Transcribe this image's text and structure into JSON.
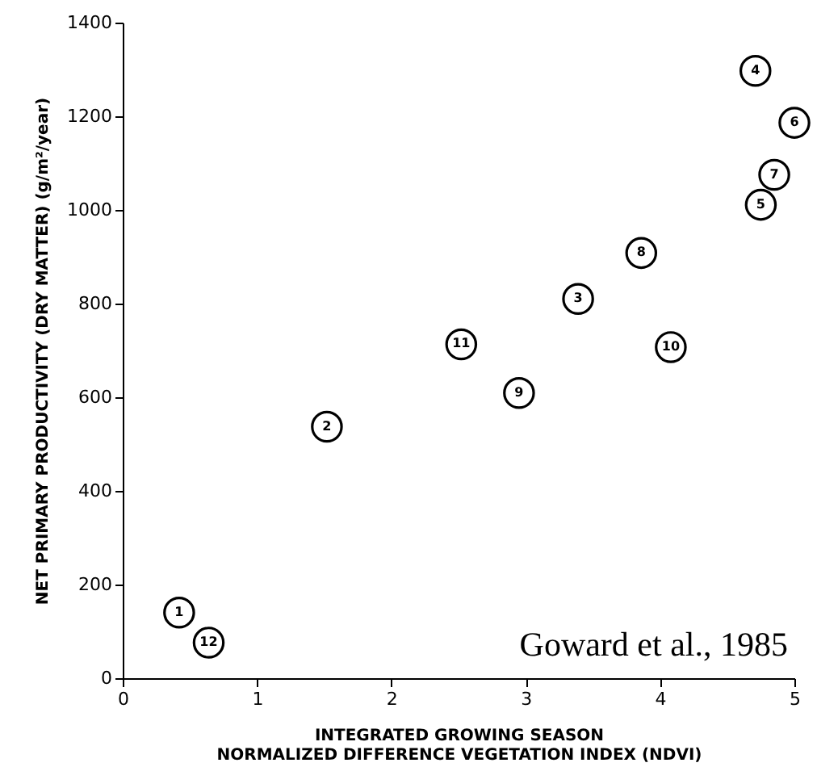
{
  "chart_data": {
    "type": "scatter",
    "xlabel": "INTEGRATED GROWING SEASON\nNORMALIZED DIFFERENCE VEGETATION INDEX (NDVI)",
    "ylabel": "NET PRIMARY PRODUCTIVITY (DRY MATTER) (g/m²/year)",
    "x": [
      0.42,
      0.64,
      1.52,
      2.52,
      2.95,
      3.39,
      3.86,
      4.08,
      4.71,
      4.75,
      4.85,
      5.0
    ],
    "values": [
      140,
      76,
      537,
      713,
      609,
      810,
      908,
      707,
      1297,
      1011,
      1075,
      1186
    ],
    "color": "#000000",
    "marker": "circle",
    "xlim": [
      0,
      5
    ],
    "ylim": [
      0,
      1400
    ],
    "xticks": [
      0,
      1,
      2,
      3,
      4,
      5
    ],
    "yticks": [
      0,
      200,
      400,
      600,
      800,
      1000,
      1200,
      1400
    ],
    "grid": false,
    "annotations": [
      {
        "text": "1",
        "x": 0.42,
        "y": 140
      },
      {
        "text": "12",
        "x": 0.64,
        "y": 76
      },
      {
        "text": "2",
        "x": 1.52,
        "y": 537
      },
      {
        "text": "11",
        "x": 2.52,
        "y": 713
      },
      {
        "text": "9",
        "x": 2.95,
        "y": 609
      },
      {
        "text": "3",
        "x": 3.39,
        "y": 810
      },
      {
        "text": "8",
        "x": 3.86,
        "y": 908
      },
      {
        "text": "10",
        "x": 4.08,
        "y": 707
      },
      {
        "text": "4",
        "x": 4.71,
        "y": 1297
      },
      {
        "text": "5",
        "x": 4.75,
        "y": 1011
      },
      {
        "text": "7",
        "x": 4.85,
        "y": 1075
      },
      {
        "text": "6",
        "x": 5.0,
        "y": 1186
      },
      "Goward et al., 1985"
    ]
  }
}
